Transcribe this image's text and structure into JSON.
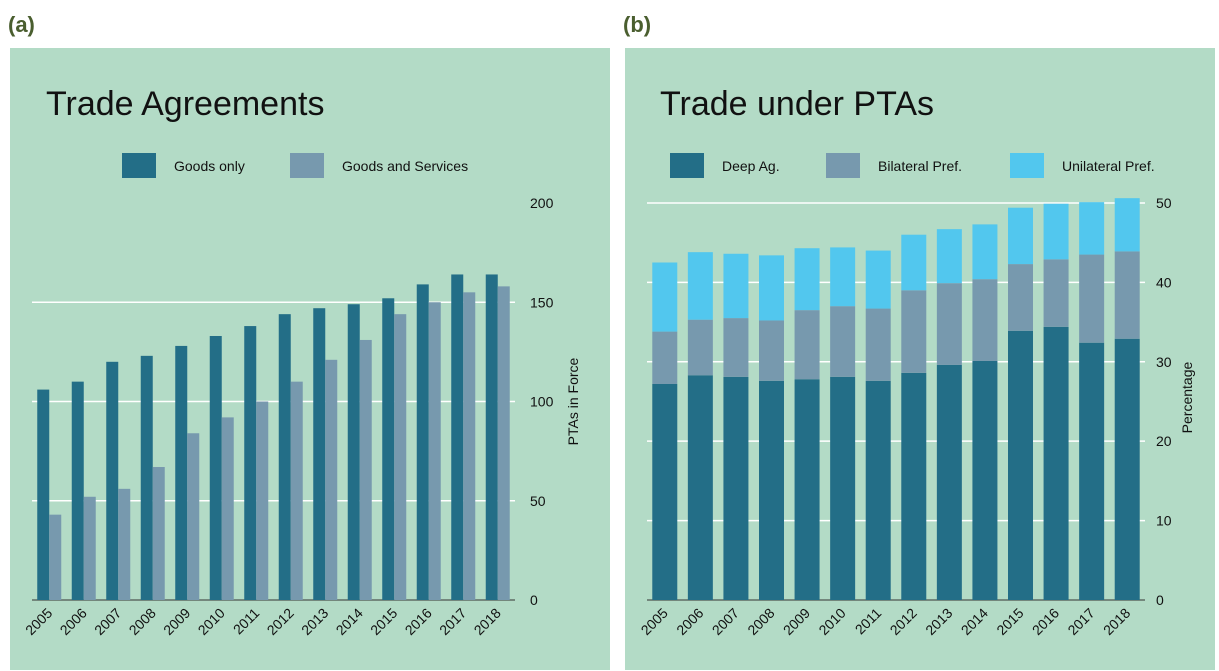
{
  "chart_data": [
    {
      "type": "bar",
      "label": "(a)",
      "title": "Trade Agreements",
      "y_label": "PTAs in Force",
      "stacked": false,
      "grid": true,
      "categories": [
        "2005",
        "2006",
        "2007",
        "2008",
        "2009",
        "2010",
        "2011",
        "2012",
        "2013",
        "2014",
        "2015",
        "2016",
        "2017",
        "2018"
      ],
      "series": [
        {
          "name": "Goods only",
          "color": "#236e87",
          "values": [
            106,
            110,
            120,
            123,
            128,
            133,
            138,
            144,
            147,
            149,
            152,
            159,
            164,
            164
          ]
        },
        {
          "name": "Goods and Services",
          "color": "#7799ae",
          "values": [
            43,
            52,
            56,
            67,
            84,
            92,
            100,
            110,
            121,
            131,
            144,
            150,
            155,
            158
          ]
        }
      ],
      "ylim": [
        0,
        200
      ],
      "yticks": [
        0,
        50,
        100,
        150,
        200
      ]
    },
    {
      "type": "bar",
      "label": "(b)",
      "title": "Trade under PTAs",
      "y_label": "Percentage",
      "stacked": true,
      "grid": true,
      "categories": [
        "2005",
        "2006",
        "2007",
        "2008",
        "2009",
        "2010",
        "2011",
        "2012",
        "2013",
        "2014",
        "2015",
        "2016",
        "2017",
        "2018"
      ],
      "series": [
        {
          "name": "Deep Ag.",
          "color": "#236e87",
          "values": [
            27.2,
            28.3,
            28.1,
            27.6,
            27.8,
            28.1,
            27.6,
            28.6,
            29.6,
            30.1,
            33.9,
            34.4,
            32.4,
            32.9
          ]
        },
        {
          "name": "Bilateral Pref.",
          "color": "#7799ae",
          "values": [
            6.6,
            7.0,
            7.4,
            7.6,
            8.7,
            8.9,
            9.1,
            10.4,
            10.3,
            10.3,
            8.4,
            8.5,
            11.1,
            11.0
          ]
        },
        {
          "name": "Unilateral Pref.",
          "color": "#52c7ee",
          "values": [
            8.7,
            8.5,
            8.1,
            8.2,
            7.8,
            7.4,
            7.3,
            7.0,
            6.8,
            6.9,
            7.1,
            7.0,
            6.6,
            6.7
          ]
        }
      ],
      "ylim": [
        0,
        51
      ],
      "yticks": [
        0,
        10,
        20,
        30,
        40,
        50
      ]
    }
  ]
}
